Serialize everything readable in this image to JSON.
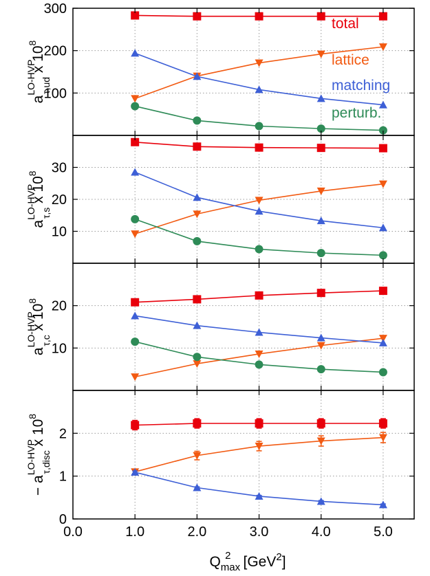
{
  "chart_data": {
    "type": "line",
    "shared_x": {
      "label_main": "Q",
      "label_sup": "2",
      "label_sub": "max",
      "label_tail": "[GeV",
      "label_tail_sup": "2",
      "label_end": "]",
      "range": [
        0.0,
        5.5
      ],
      "ticks": [
        "0.0",
        "1.0",
        "2.0",
        "3.0",
        "4.0",
        "5.0"
      ],
      "x": [
        1.0,
        2.0,
        3.0,
        4.0,
        5.0
      ]
    },
    "grid": true,
    "colors": {
      "total": "#e8000b",
      "lattice": "#f25a12",
      "matching": "#3d5fd6",
      "perturb": "#2e8b57"
    },
    "legend_labels": [
      "total",
      "lattice",
      "matching",
      "perturb."
    ],
    "panels": [
      {
        "ylabel_prefix": "",
        "ylabel_base": "a",
        "ylabel_sup": "LO-HVP",
        "ylabel_sub": "τ,ud",
        "ylabel_tail": " x 10",
        "ylabel_tail_sup": "8",
        "ylim": [
          0,
          300
        ],
        "yticks": [
          "100",
          "200",
          "300"
        ],
        "series": [
          {
            "name": "total",
            "marker": "square",
            "values": [
              283,
              281,
              281,
              281,
              281
            ]
          },
          {
            "name": "lattice",
            "marker": "triangle-down",
            "values": [
              87,
              140,
              171,
              192,
              209
            ]
          },
          {
            "name": "matching",
            "marker": "triangle-up",
            "values": [
              194,
              139,
              108,
              87,
              72
            ]
          },
          {
            "name": "perturb",
            "marker": "circle",
            "values": [
              69,
              35,
              22,
              16,
              12
            ]
          }
        ]
      },
      {
        "ylabel_prefix": "",
        "ylabel_base": "a",
        "ylabel_sup": "LO-HVP",
        "ylabel_sub": "τ,s",
        "ylabel_tail": " x 10",
        "ylabel_tail_sup": "8",
        "ylim": [
          0,
          40
        ],
        "yticks": [
          "10",
          "20",
          "30"
        ],
        "series": [
          {
            "name": "total",
            "marker": "square",
            "values": [
              37.9,
              36.5,
              36.2,
              36.1,
              36.0
            ]
          },
          {
            "name": "lattice",
            "marker": "triangle-down",
            "values": [
              9.2,
              15.4,
              19.7,
              22.6,
              24.8
            ]
          },
          {
            "name": "matching",
            "marker": "triangle-up",
            "values": [
              28.5,
              20.6,
              16.3,
              13.3,
              11.1
            ]
          },
          {
            "name": "perturb",
            "marker": "circle",
            "values": [
              13.8,
              6.9,
              4.4,
              3.2,
              2.5
            ]
          }
        ]
      },
      {
        "ylabel_prefix": "",
        "ylabel_base": "a",
        "ylabel_sup": "LO-HVP",
        "ylabel_sub": "τ,c",
        "ylabel_tail": " x 10",
        "ylabel_tail_sup": "8",
        "ylim": [
          0,
          30
        ],
        "yticks": [
          "10",
          "20"
        ],
        "series": [
          {
            "name": "total",
            "marker": "square",
            "values": [
              20.8,
              21.5,
              22.4,
              23.0,
              23.5
            ]
          },
          {
            "name": "lattice",
            "marker": "triangle-down",
            "values": [
              3.2,
              6.3,
              8.6,
              10.6,
              12.3
            ]
          },
          {
            "name": "matching",
            "marker": "triangle-up",
            "values": [
              17.6,
              15.3,
              13.7,
              12.4,
              11.2
            ]
          },
          {
            "name": "perturb",
            "marker": "circle",
            "values": [
              11.5,
              7.9,
              6.1,
              5.0,
              4.3
            ]
          }
        ]
      },
      {
        "ylabel_prefix": "− ",
        "ylabel_base": "a",
        "ylabel_sup": "LO-HVP",
        "ylabel_sub": "τ,disc",
        "ylabel_tail": " x 10",
        "ylabel_tail_sup": "8",
        "ylim": [
          0,
          3
        ],
        "yticks": [
          "0",
          "1",
          "2"
        ],
        "series": [
          {
            "name": "total",
            "marker": "square",
            "values": [
              2.19,
              2.23,
              2.23,
              2.23,
              2.23
            ],
            "errors": [
              0.11,
              0.11,
              0.11,
              0.11,
              0.11
            ]
          },
          {
            "name": "lattice",
            "marker": "triangle-down",
            "values": [
              1.1,
              1.48,
              1.7,
              1.82,
              1.9
            ],
            "errors": [
              0.05,
              0.1,
              0.11,
              0.12,
              0.12
            ]
          },
          {
            "name": "matching",
            "marker": "triangle-up",
            "values": [
              1.09,
              0.73,
              0.53,
              0.41,
              0.33
            ],
            "errors": [
              0.03,
              0.02,
              0.02,
              0.02,
              0.02
            ]
          }
        ]
      }
    ]
  }
}
